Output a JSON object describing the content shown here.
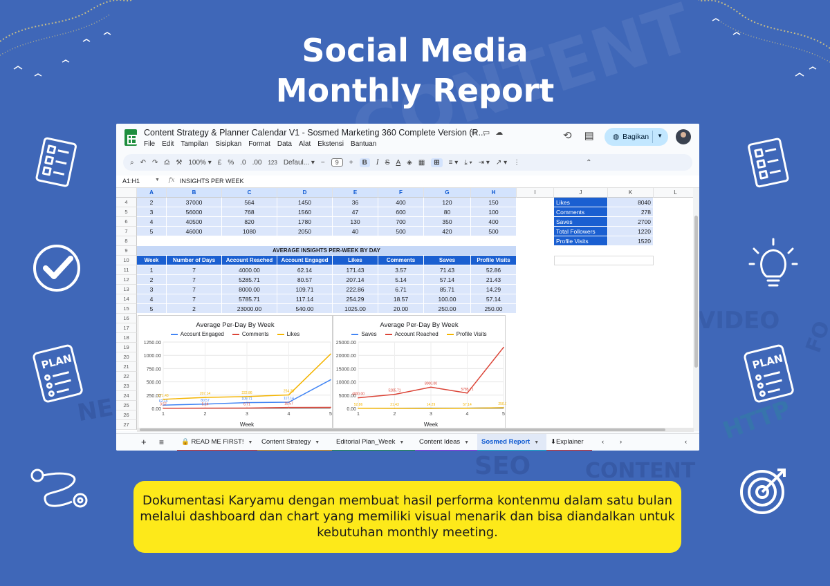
{
  "page": {
    "title_line1": "Social Media",
    "title_line2": "Monthly Report",
    "caption": "Dokumentasi Karyamu dengan membuat hasil performa kontenmu dalam satu bulan melalui dashboard dan chart yang memiliki visual menarik dan bisa diandalkan untuk kebutuhan monthly meeting.",
    "bg_words": [
      "CONTENT",
      "VIDEO",
      "HTTP",
      "SEO",
      "CONTENT",
      "NE",
      "FO"
    ],
    "side_icons": [
      "checklist-icon",
      "checkmark-icon",
      "plan-scroll-icon",
      "route-icon",
      "checklist-icon",
      "lightbulb-icon",
      "plan-scroll-icon",
      "target-icon"
    ]
  },
  "app": {
    "doc_title": "Content Strategy & Planner Calendar V1 - Sosmed Marketing 360 Complete Version (R...",
    "menu": [
      "File",
      "Edit",
      "Tampilan",
      "Sisipkan",
      "Format",
      "Data",
      "Alat",
      "Ekstensi",
      "Bantuan"
    ],
    "share_label": "Bagikan",
    "toolbar": {
      "zoom": "100%",
      "currency": "£",
      "percent": "%",
      "dec_decrease": ".0",
      "dec_increase": ".00",
      "number_format": "123",
      "font": "Defaul...",
      "font_size": "9",
      "bold": "B",
      "italic": "I",
      "strike": "S",
      "text_color": "A"
    },
    "name_box": "A1:H1",
    "formula": "INSIGHTS PER WEEK",
    "accent": "#1a5fd1",
    "light_fill": "#dbe6fb"
  },
  "grid": {
    "columns": [
      "A",
      "B",
      "C",
      "D",
      "E",
      "F",
      "G",
      "H",
      "I",
      "J",
      "K",
      "L"
    ],
    "row_numbers": [
      "4",
      "5",
      "6",
      "7",
      "8",
      "9",
      "10",
      "11",
      "12",
      "13",
      "14",
      "15",
      "16",
      "17",
      "18",
      "19",
      "20",
      "21",
      "22",
      "23",
      "24",
      "25",
      "26",
      "27"
    ],
    "top_rows": [
      [
        "2",
        "37000",
        "564",
        "1450",
        "36",
        "400",
        "120",
        "150"
      ],
      [
        "3",
        "56000",
        "768",
        "1560",
        "47",
        "600",
        "80",
        "100"
      ],
      [
        "4",
        "40500",
        "820",
        "1780",
        "130",
        "700",
        "350",
        "400"
      ],
      [
        "5",
        "46000",
        "1080",
        "2050",
        "40",
        "500",
        "420",
        "500"
      ]
    ],
    "summary": [
      {
        "label": "Likes",
        "value": "8040"
      },
      {
        "label": "Comments",
        "value": "278"
      },
      {
        "label": "Saves",
        "value": "2700"
      },
      {
        "label": "Total Followers",
        "value": "1220"
      },
      {
        "label": "Profile Visits",
        "value": "1520"
      }
    ],
    "avg_banner": "AVERAGE INSIGHTS PER-WEEK BY DAY",
    "avg_headers": [
      "Week",
      "Number of Days",
      "Account Reached",
      "Account Engaged",
      "Likes",
      "Comments",
      "Saves",
      "Profile Visits"
    ],
    "avg_rows": [
      [
        "1",
        "7",
        "4000.00",
        "62.14",
        "171.43",
        "3.57",
        "71.43",
        "52.86"
      ],
      [
        "2",
        "7",
        "5285.71",
        "80.57",
        "207.14",
        "5.14",
        "57.14",
        "21.43"
      ],
      [
        "3",
        "7",
        "8000.00",
        "109.71",
        "222.86",
        "6.71",
        "85.71",
        "14.29"
      ],
      [
        "4",
        "7",
        "5785.71",
        "117.14",
        "254.29",
        "18.57",
        "100.00",
        "57.14"
      ],
      [
        "5",
        "2",
        "23000.00",
        "540.00",
        "1025.00",
        "20.00",
        "250.00",
        "250.00"
      ]
    ]
  },
  "tabs": [
    {
      "label": "🔒 READ ME FIRST!",
      "color": "#d93025"
    },
    {
      "label": "Content Strategy",
      "color": "#f29900"
    },
    {
      "label": "Editorial Plan_Week",
      "color": "#1e8e3e"
    },
    {
      "label": "Content Ideas",
      "color": "#9334e6"
    },
    {
      "label": "Sosmed Report",
      "color": "#12b5cb"
    },
    {
      "label": "⬇Explainer",
      "color": "#d93025"
    }
  ],
  "chart_data": [
    {
      "type": "line",
      "title": "Average Per-Day By Week",
      "xlabel": "Week",
      "ylabel": "",
      "x": [
        1,
        2,
        3,
        4,
        5
      ],
      "x_ticks": [
        "1",
        "2",
        "3",
        "4",
        "5"
      ],
      "y_ticks": [
        "0.00",
        "250.00",
        "500.00",
        "750.00",
        "1000.00",
        "1250.00"
      ],
      "ylim": [
        0,
        1250
      ],
      "legend_position": "top",
      "grid": true,
      "series": [
        {
          "name": "Account Engaged",
          "color": "#4285f4",
          "values": [
            62.14,
            80.57,
            109.71,
            117.14,
            540
          ],
          "labels": [
            "62.14",
            "80.57",
            "109.71",
            "117.14",
            ""
          ]
        },
        {
          "name": "Comments",
          "color": "#db4437",
          "values": [
            3.57,
            5.14,
            6.71,
            18.57,
            20
          ],
          "labels": [
            "3.57",
            "5.14",
            "6.71",
            "18.57",
            ""
          ]
        },
        {
          "name": "Likes",
          "color": "#f4b400",
          "values": [
            171.43,
            207.14,
            222.86,
            254.29,
            1025
          ],
          "labels": [
            "171.43",
            "207.14",
            "222.86",
            "254.29",
            ""
          ]
        }
      ]
    },
    {
      "type": "line",
      "title": "Average Per-Day By Week",
      "xlabel": "Week",
      "ylabel": "",
      "x": [
        1,
        2,
        3,
        4,
        5
      ],
      "x_ticks": [
        "1",
        "2",
        "3",
        "4",
        "5"
      ],
      "y_ticks": [
        "0.00",
        "5000.00",
        "10000.00",
        "15000.00",
        "20000.00",
        "25000.00"
      ],
      "ylim": [
        0,
        25000
      ],
      "legend_position": "top",
      "grid": true,
      "series": [
        {
          "name": "Saves",
          "color": "#4285f4",
          "values": [
            71.43,
            57.14,
            85.71,
            100,
            250
          ],
          "labels": [
            "",
            "",
            "",
            "",
            ""
          ]
        },
        {
          "name": "Account Reached",
          "color": "#db4437",
          "values": [
            4000,
            5285.71,
            8000,
            5785.71,
            23000
          ],
          "labels": [
            "4000.00",
            "5285.71",
            "8000.00",
            "5785.71",
            ""
          ]
        },
        {
          "name": "Profile Visits",
          "color": "#f4b400",
          "values": [
            52.86,
            21.43,
            14.29,
            57.14,
            250
          ],
          "labels": [
            "52.86",
            "21.43",
            "14.29",
            "57.14",
            "250.00"
          ]
        }
      ]
    }
  ]
}
